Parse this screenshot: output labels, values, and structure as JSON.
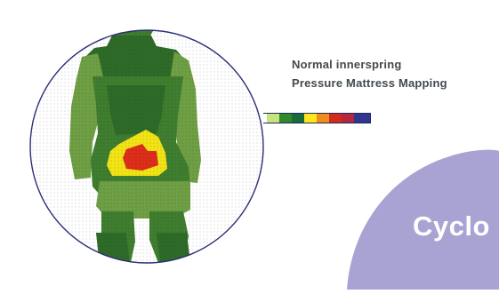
{
  "caption": {
    "line1": "Normal innerspring",
    "line2": "Pressure Mattress Mapping"
  },
  "scale": {
    "colors": [
      "#ffffff",
      "#c6e47a",
      "#2f8a2c",
      "#1a6a3a",
      "#ffe61a",
      "#f08b1e",
      "#d22b1e",
      "#b5273f",
      "#2e3690"
    ]
  },
  "colors": {
    "green_light": "#6f9f44",
    "green_mid": "#3f7d2f",
    "green_dark": "#2f6b28",
    "yellow": "#f1e315",
    "red": "#dc2e1a",
    "circle_stroke": "#2b2f78",
    "brand_blob": "#a9a3d3"
  },
  "brand": {
    "text": "Cyclo"
  }
}
